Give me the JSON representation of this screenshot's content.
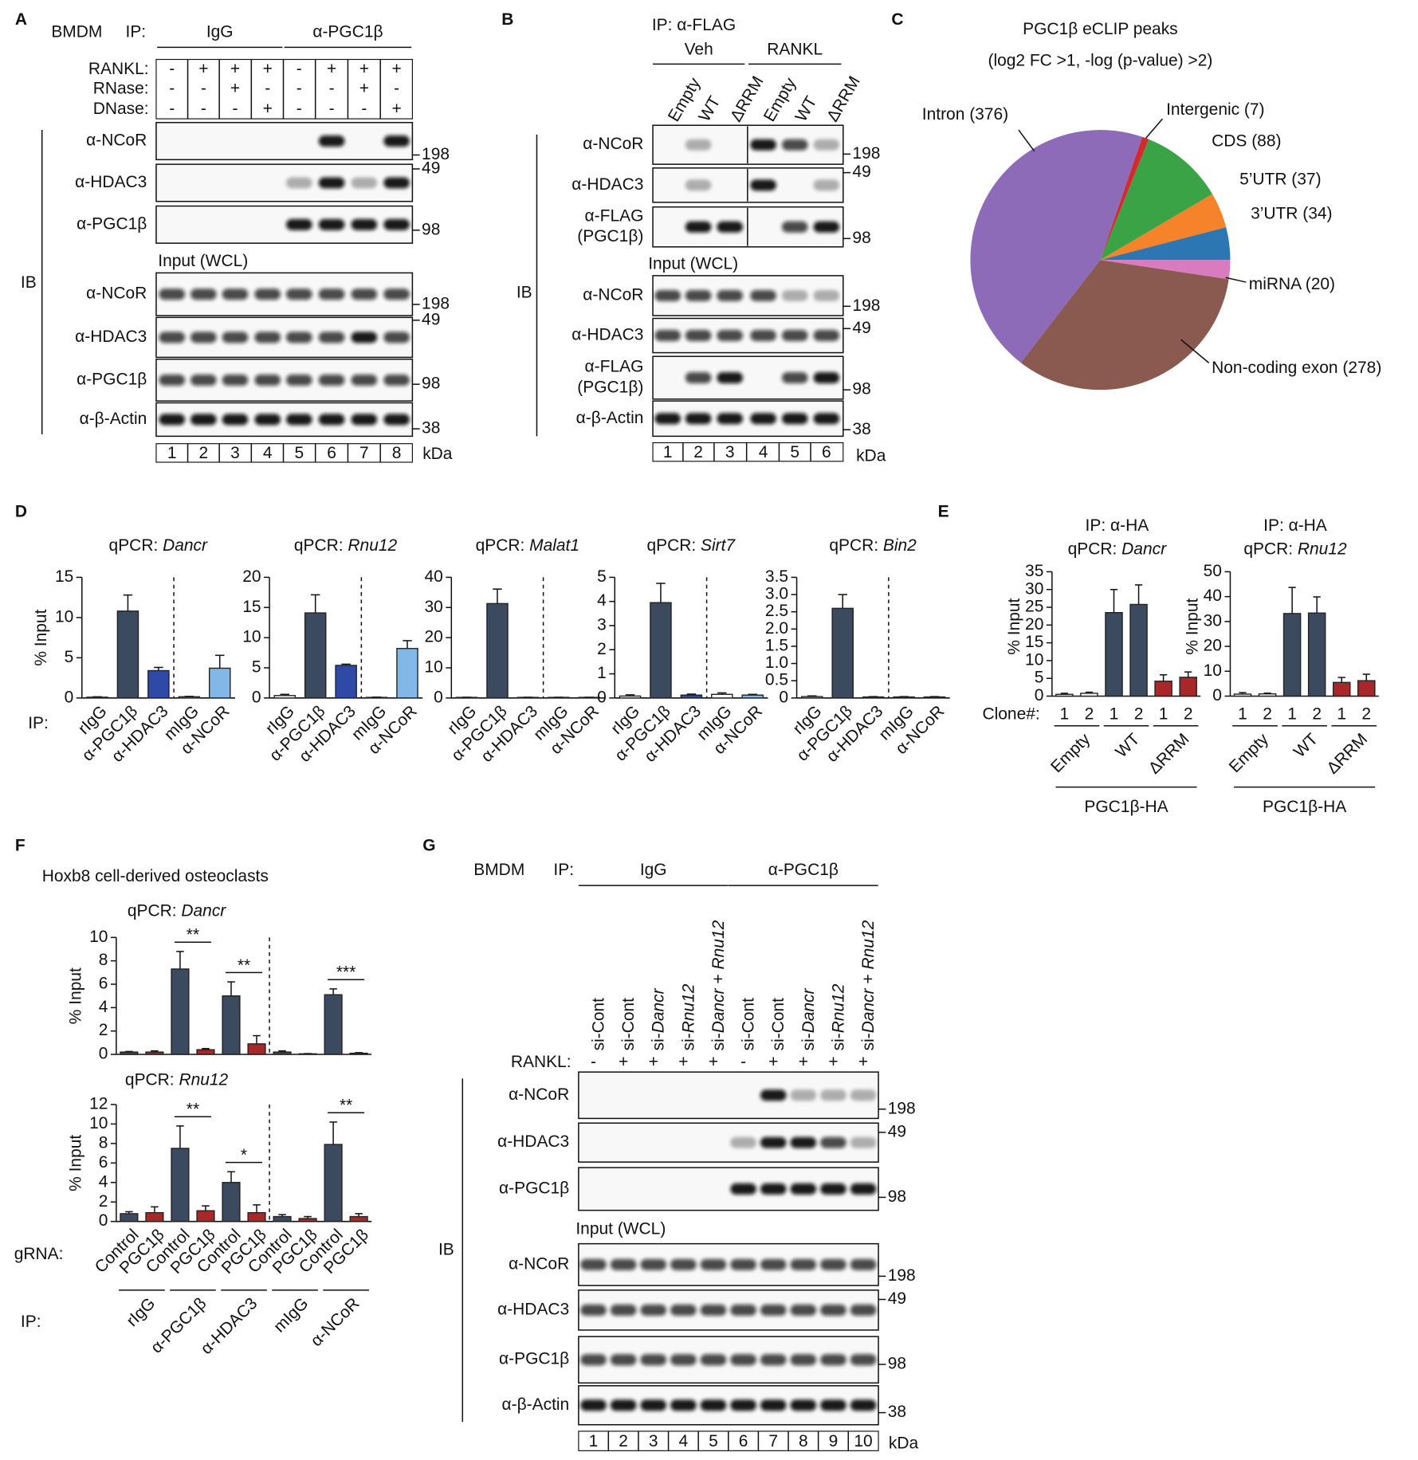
{
  "blots": {
    "A": {
      "letter": "A",
      "cell": "BMDM",
      "ip": "IP:",
      "groups": [
        "IgG",
        "α-PGC1β"
      ],
      "conditions": [
        {
          "name": "RANKL:",
          "signs": [
            "-",
            "+",
            "+",
            "+",
            "-",
            "+",
            "+",
            "+"
          ]
        },
        {
          "name": "RNase:",
          "signs": [
            "-",
            "-",
            "+",
            "-",
            "-",
            "-",
            "+",
            "-"
          ]
        },
        {
          "name": "DNase:",
          "signs": [
            "-",
            "-",
            "-",
            "+",
            "-",
            "-",
            "-",
            "+"
          ]
        }
      ],
      "ip_blots": [
        {
          "label": "α-NCoR",
          "marker": 198
        },
        {
          "label": "α-HDAC3",
          "marker": 49
        },
        {
          "label": "α-PGC1β",
          "marker": 98
        }
      ],
      "input_title": "Input (WCL)",
      "input_blots": [
        {
          "label": "α-NCoR",
          "marker": 198
        },
        {
          "label": "α-HDAC3",
          "marker": 49
        },
        {
          "label": "α-PGC1β",
          "marker": 98
        },
        {
          "label": "α-β-Actin",
          "marker": 38
        }
      ],
      "lanes": [
        1,
        2,
        3,
        4,
        5,
        6,
        7,
        8
      ],
      "unit": "kDa",
      "ib": "IB"
    },
    "B": {
      "letter": "B",
      "ip": "IP: α-FLAG",
      "groups": [
        "Veh",
        "RANKL"
      ],
      "lane_labels": [
        "Empty",
        "WT",
        "ΔRRM",
        "Empty",
        "WT",
        "ΔRRM"
      ],
      "ip_blots": [
        {
          "label": "α-NCoR",
          "marker": 198
        },
        {
          "label": "α-HDAC3",
          "marker": 49
        },
        {
          "label": [
            "α-FLAG",
            "(PGC1β)"
          ],
          "marker": 98
        }
      ],
      "input_title": "Input (WCL)",
      "input_blots": [
        {
          "label": "α-NCoR",
          "marker": 198
        },
        {
          "label": "α-HDAC3",
          "marker": 49
        },
        {
          "label": [
            "α-FLAG",
            "(PGC1β)"
          ],
          "marker": 98
        },
        {
          "label": "α-β-Actin",
          "marker": 38
        }
      ],
      "lanes": [
        1,
        2,
        3,
        4,
        5,
        6
      ],
      "unit": "kDa",
      "ib": "IB"
    },
    "G": {
      "letter": "G",
      "cell": "BMDM",
      "ip": "IP:",
      "groups": [
        "IgG",
        "α-PGC1β"
      ],
      "lane_labels": [
        [
          "si-Cont"
        ],
        [
          "si-Cont"
        ],
        [
          "si-",
          "Dancr"
        ],
        [
          "si-",
          "Rnu12"
        ],
        [
          "si-",
          "Dancr",
          " + ",
          "Rnu12"
        ],
        [
          "si-Cont"
        ],
        [
          "si-Cont"
        ],
        [
          "si-",
          "Dancr"
        ],
        [
          "si-",
          "Rnu12"
        ],
        [
          "si-",
          "Dancr",
          " + ",
          "Rnu12"
        ]
      ],
      "conditions": [
        {
          "name": "RANKL:",
          "signs": [
            "-",
            "+",
            "+",
            "+",
            "+",
            "-",
            "+",
            "+",
            "+",
            "+"
          ]
        }
      ],
      "ip_blots": [
        {
          "label": "α-NCoR",
          "marker": 198
        },
        {
          "label": "α-HDAC3",
          "marker": 49
        },
        {
          "label": "α-PGC1β",
          "marker": 98
        }
      ],
      "input_title": "Input (WCL)",
      "input_blots": [
        {
          "label": "α-NCoR",
          "marker": 198
        },
        {
          "label": "α-HDAC3",
          "marker": 49
        },
        {
          "label": "α-PGC1β",
          "marker": 98
        },
        {
          "label": "α-β-Actin",
          "marker": 38
        }
      ],
      "lanes": [
        1,
        2,
        3,
        4,
        5,
        6,
        7,
        8,
        9,
        10
      ],
      "unit": "kDa",
      "ib": "IB"
    }
  },
  "chart_data": [
    {
      "type": "pie",
      "panel": "C",
      "title": "PGC1β eCLIP peaks",
      "subtitle": "(log2 FC >1, -log (p-value) >2)",
      "categories": [
        "3’UTR (34)",
        "5’UTR (37)",
        "CDS (88)",
        "Intergenic (7)",
        "Intron (376)",
        "Non-coding exon (278)",
        "miRNA (20)"
      ],
      "values": [
        34,
        37,
        88,
        7,
        376,
        278,
        20
      ],
      "colors": [
        "#2c77b3",
        "#f6822a",
        "#3aa345",
        "#d42a2e",
        "#8e6bb8",
        "#8a5a50",
        "#d97bbf"
      ]
    },
    {
      "type": "bar",
      "panel": "D",
      "title": "qPCR:",
      "gene": "Dancr",
      "ylabel": "% Input",
      "xlabel": "IP:",
      "categories": [
        "rIgG",
        "α-PGC1β",
        "α-HDAC3",
        "mIgG",
        "α-NCoR"
      ],
      "values": [
        0.1,
        10.8,
        3.4,
        0.15,
        3.7
      ],
      "errors": [
        0.05,
        2.0,
        0.4,
        0.05,
        1.6
      ],
      "colors": [
        "#ffffff",
        "#3b4a5e",
        "#2e4aa6",
        "#ffffff",
        "#82b8e8"
      ],
      "ylim": [
        0,
        15
      ],
      "yticks": [
        0,
        5,
        10,
        15
      ]
    },
    {
      "type": "bar",
      "title": "qPCR:",
      "gene": "Rnu12",
      "categories": [
        "rIgG",
        "α-PGC1β",
        "α-HDAC3",
        "mIgG",
        "α-NCoR"
      ],
      "values": [
        0.4,
        14.1,
        5.4,
        0.1,
        8.2
      ],
      "errors": [
        0.2,
        3.0,
        0.2,
        0.05,
        1.3
      ],
      "colors": [
        "#ffffff",
        "#3b4a5e",
        "#2e4aa6",
        "#ffffff",
        "#82b8e8"
      ],
      "ylim": [
        0,
        20
      ],
      "yticks": [
        0,
        5,
        10,
        15,
        20
      ]
    },
    {
      "type": "bar",
      "title": "qPCR:",
      "gene": "Malat1",
      "categories": [
        "rIgG",
        "α-PGC1β",
        "α-HDAC3",
        "mIgG",
        "α-NCoR"
      ],
      "values": [
        0.2,
        31.3,
        0.2,
        0.2,
        0.2
      ],
      "errors": [
        0.05,
        4.8,
        0.05,
        0.05,
        0.05
      ],
      "colors": [
        "#ffffff",
        "#3b4a5e",
        "#2e4aa6",
        "#ffffff",
        "#82b8e8"
      ],
      "ylim": [
        0,
        40
      ],
      "yticks": [
        0,
        10,
        20,
        30,
        40
      ]
    },
    {
      "type": "bar",
      "title": "qPCR:",
      "gene": "Sirt7",
      "categories": [
        "rIgG",
        "α-PGC1β",
        "α-HDAC3",
        "mIgG",
        "α-NCoR"
      ],
      "values": [
        0.08,
        3.95,
        0.12,
        0.15,
        0.12
      ],
      "errors": [
        0.05,
        0.8,
        0.04,
        0.06,
        0.03
      ],
      "colors": [
        "#ffffff",
        "#3b4a5e",
        "#2e4aa6",
        "#ffffff",
        "#82b8e8"
      ],
      "ylim": [
        0,
        5
      ],
      "yticks": [
        0,
        1,
        2,
        3,
        4,
        5
      ]
    },
    {
      "type": "bar",
      "title": "qPCR:",
      "gene": "Bin2",
      "categories": [
        "rIgG",
        "α-PGC1β",
        "α-HDAC3",
        "mIgG",
        "α-NCoR"
      ],
      "values": [
        0.04,
        2.6,
        0.03,
        0.03,
        0.03
      ],
      "errors": [
        0.02,
        0.4,
        0.01,
        0.01,
        0.01
      ],
      "colors": [
        "#ffffff",
        "#3b4a5e",
        "#2e4aa6",
        "#ffffff",
        "#82b8e8"
      ],
      "ylim": [
        0,
        3.5
      ],
      "yticks": [
        0,
        0.5,
        {
          "value": 1,
          "label": "1.0"
        },
        1.5,
        {
          "value": 2,
          "label": "2.0"
        },
        2.5,
        {
          "value": 3,
          "label": "3.0"
        },
        3.5
      ]
    },
    {
      "type": "bar",
      "panel": "E",
      "heading": "IP: α-HA",
      "title": "qPCR:",
      "gene": "Dancr",
      "ylabel": "% Input",
      "xlabel": "Clone#:",
      "categories": [
        "1",
        "2",
        "1",
        "2",
        "1",
        "2"
      ],
      "groups": [
        "Empty",
        "WT",
        "ΔRRM"
      ],
      "group_title": "PGC1β-HA",
      "values": [
        0.5,
        0.8,
        23.5,
        25.8,
        4.2,
        5.3
      ],
      "errors": [
        0.3,
        0.3,
        6.5,
        5.5,
        1.8,
        1.5
      ],
      "colors": [
        "#ffffff",
        "#ffffff",
        "#3b4a5e",
        "#3b4a5e",
        "#a8282a",
        "#a8282a"
      ],
      "ylim": [
        0,
        35
      ],
      "yticks": [
        0,
        5,
        10,
        15,
        20,
        25,
        30,
        35
      ]
    },
    {
      "type": "bar",
      "heading": "IP: α-HA",
      "title": "qPCR:",
      "gene": "Rnu12",
      "ylabel": "% Input",
      "categories": [
        "1",
        "2",
        "1",
        "2",
        "1",
        "2"
      ],
      "groups": [
        "Empty",
        "WT",
        "ΔRRM"
      ],
      "group_title": "PGC1β-HA",
      "values": [
        0.8,
        0.9,
        33.2,
        33.4,
        5.5,
        6.2
      ],
      "errors": [
        0.6,
        0.3,
        10.5,
        6.5,
        2.0,
        2.6
      ],
      "colors": [
        "#ffffff",
        "#ffffff",
        "#3b4a5e",
        "#3b4a5e",
        "#a8282a",
        "#a8282a"
      ],
      "ylim": [
        0,
        50
      ],
      "yticks": [
        0,
        10,
        20,
        30,
        40,
        50
      ]
    },
    {
      "type": "bar",
      "panel": "F",
      "subtitle": "Hoxb8 cell-derived osteoclasts",
      "title": "qPCR:",
      "gene": "Dancr",
      "ylabel": "% Input",
      "values": [
        0.2,
        0.2,
        7.3,
        0.4,
        5.0,
        0.9,
        0.2,
        0.05,
        5.1,
        0.1
      ],
      "errors": [
        0.05,
        0.1,
        1.5,
        0.1,
        1.2,
        0.7,
        0.1,
        0.02,
        0.5,
        0.05
      ],
      "colors": [
        "#3b4a5e",
        "#a8282a",
        "#3b4a5e",
        "#a8282a",
        "#3b4a5e",
        "#a8282a",
        "#3b4a5e",
        "#a8282a",
        "#3b4a5e",
        "#a8282a"
      ],
      "annotations": [
        {
          "bars": [
            2,
            3
          ],
          "text": "**"
        },
        {
          "bars": [
            4,
            5
          ],
          "text": "**"
        },
        {
          "bars": [
            8,
            9
          ],
          "text": "***"
        }
      ],
      "ylim": [
        0,
        10
      ],
      "yticks": [
        0,
        2,
        4,
        6,
        8,
        10
      ]
    },
    {
      "type": "bar",
      "title": "qPCR:",
      "gene": "Rnu12",
      "ylabel": "% Input",
      "xlabel": "gRNA:",
      "categories": [
        "Control",
        "PGC1β",
        "Control",
        "PGC1β",
        "Control",
        "PGC1β",
        "Control",
        "PGC1β",
        "Control",
        "PGC1β"
      ],
      "groups": [
        "rIgG",
        "α-PGC1β",
        "α-HDAC3",
        "mIgG",
        "α-NCoR"
      ],
      "group_label": "IP:",
      "values": [
        0.8,
        0.9,
        7.5,
        1.1,
        4.0,
        0.9,
        0.5,
        0.3,
        7.9,
        0.5
      ],
      "errors": [
        0.2,
        0.6,
        2.3,
        0.5,
        1.1,
        0.8,
        0.2,
        0.2,
        2.3,
        0.3
      ],
      "colors": [
        "#3b4a5e",
        "#a8282a",
        "#3b4a5e",
        "#a8282a",
        "#3b4a5e",
        "#a8282a",
        "#3b4a5e",
        "#a8282a",
        "#3b4a5e",
        "#a8282a"
      ],
      "annotations": [
        {
          "bars": [
            2,
            3
          ],
          "text": "**"
        },
        {
          "bars": [
            4,
            5
          ],
          "text": "*"
        },
        {
          "bars": [
            8,
            9
          ],
          "text": "**"
        }
      ],
      "ylim": [
        0,
        12
      ],
      "yticks": [
        0,
        2,
        4,
        6,
        8,
        10,
        12
      ]
    }
  ]
}
